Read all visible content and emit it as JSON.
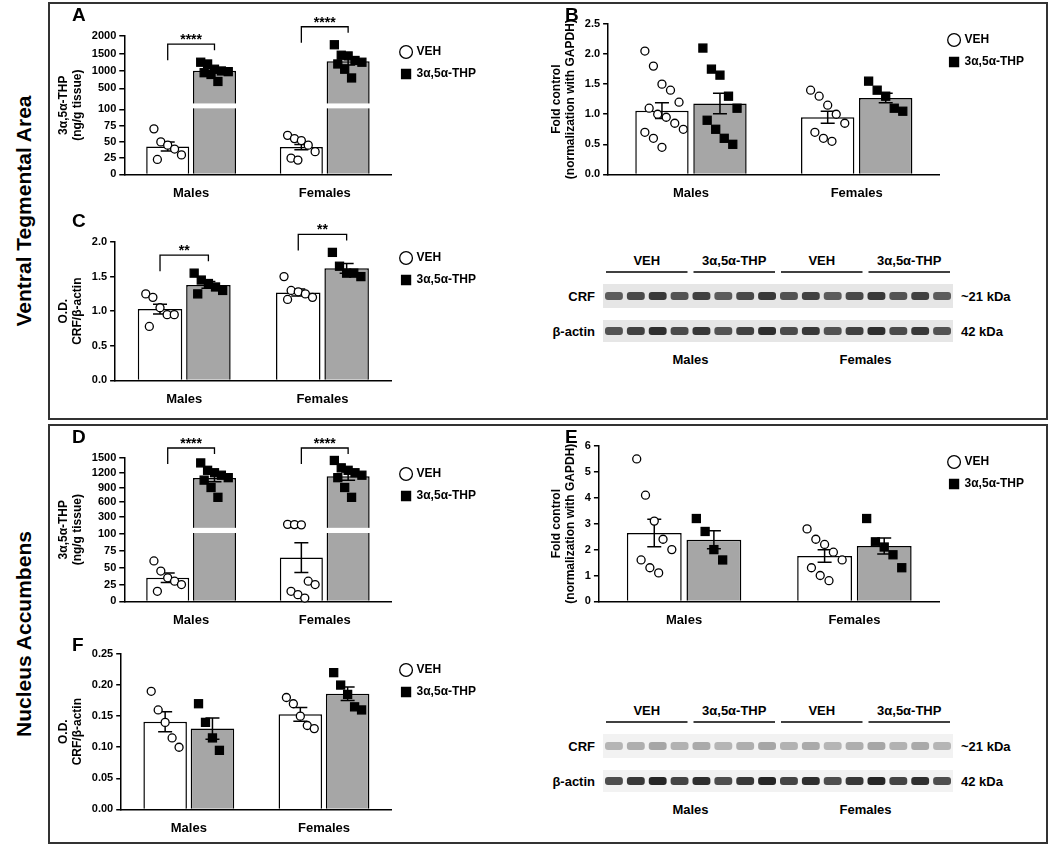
{
  "sections": [
    {
      "label": "Ventral Tegmental Area"
    },
    {
      "label": "Nucleus Accumbens"
    }
  ],
  "chart_data": [
    {
      "panel": "A",
      "type": "bar",
      "y_label": [
        "3α,5α-THP",
        "(ng/g tissue)"
      ],
      "categories": [
        "Males",
        "Females"
      ],
      "y_segments": [
        {
          "ylim": [
            0,
            100
          ],
          "yticks": [
            0,
            25,
            50,
            75,
            100
          ]
        },
        {
          "ylim": [
            100,
            2000
          ],
          "yticks": [
            500,
            1000,
            1500,
            2000
          ]
        }
      ],
      "grid": false,
      "legend": "right",
      "series": [
        {
          "name": "VEH",
          "color": "#ffffff",
          "marker": "circle-open",
          "values": [
            43,
            42
          ],
          "errors": [
            7,
            4
          ],
          "points": [
            [
              70,
              50,
              45,
              39,
              30,
              23
            ],
            [
              60,
              55,
              52,
              45,
              35,
              25,
              22
            ]
          ]
        },
        {
          "name": "3α,5α-THP",
          "color": "#a6a6a6",
          "marker": "square",
          "values": [
            1004,
            1280
          ],
          "errors": [
            57,
            110
          ],
          "points": [
            [
              1250,
              1200,
              1050,
              1000,
              980,
              950,
              900,
              700
            ],
            [
              1750,
              1450,
              1430,
              1300,
              1250,
              1200,
              1050,
              800
            ]
          ]
        }
      ],
      "significance": [
        {
          "category": "Males",
          "label": "****"
        },
        {
          "category": "Females",
          "label": "****"
        }
      ]
    },
    {
      "panel": "B",
      "type": "bar",
      "y_label": [
        "Fold control",
        "(normalization with GAPDH)"
      ],
      "categories": [
        "Males",
        "Females"
      ],
      "ylim": [
        0,
        2.5
      ],
      "yticks": [
        {
          "value": 0,
          "label": "0.0"
        },
        0.5,
        {
          "value": 1,
          "label": "1.0"
        },
        1.5,
        {
          "value": 2,
          "label": "2.0"
        },
        2.5
      ],
      "grid": false,
      "legend": "right",
      "series": [
        {
          "name": "VEH",
          "color": "#ffffff",
          "marker": "circle-open",
          "values": [
            1.06,
            0.95
          ],
          "errors": [
            0.13,
            0.1
          ],
          "points": [
            [
              2.05,
              1.8,
              1.5,
              1.4,
              1.2,
              1.1,
              1.0,
              0.95,
              0.85,
              0.75,
              0.7,
              0.6,
              0.45
            ],
            [
              1.4,
              1.3,
              1.15,
              1.0,
              0.85,
              0.7,
              0.6,
              0.55
            ]
          ]
        },
        {
          "name": "3α,5α-THP",
          "color": "#a6a6a6",
          "marker": "square",
          "values": [
            1.18,
            1.27
          ],
          "errors": [
            0.17,
            0.08
          ],
          "points": [
            [
              2.1,
              1.75,
              1.65,
              1.3,
              1.1,
              0.9,
              0.75,
              0.6,
              0.5
            ],
            [
              1.55,
              1.4,
              1.3,
              1.1,
              1.05
            ]
          ]
        }
      ],
      "significance": []
    },
    {
      "panel": "C",
      "type": "bar",
      "y_label": [
        "O.D.",
        "CRF/β-actin"
      ],
      "categories": [
        "Males",
        "Females"
      ],
      "ylim": [
        0,
        2
      ],
      "yticks": [
        {
          "value": 0,
          "label": "0.0"
        },
        0.5,
        {
          "value": 1,
          "label": "1.0"
        },
        1.5,
        {
          "value": 2,
          "label": "2.0"
        }
      ],
      "grid": false,
      "legend": "right",
      "series": [
        {
          "name": "VEH",
          "color": "#ffffff",
          "marker": "circle-open",
          "values": [
            1.03,
            1.27
          ],
          "errors": [
            0.07,
            0.05
          ],
          "points": [
            [
              1.25,
              1.2,
              1.05,
              0.95,
              0.95,
              0.78
            ],
            [
              1.5,
              1.3,
              1.28,
              1.25,
              1.2,
              1.17
            ]
          ]
        },
        {
          "name": "3α,5α-THP",
          "color": "#a6a6a6",
          "marker": "square",
          "values": [
            1.38,
            1.62
          ],
          "errors": [
            0.05,
            0.07
          ],
          "points": [
            [
              1.55,
              1.45,
              1.4,
              1.35,
              1.3,
              1.25
            ],
            [
              1.85,
              1.65,
              1.55,
              1.55,
              1.5
            ]
          ]
        }
      ],
      "significance": [
        {
          "category": "Males",
          "label": "**"
        },
        {
          "category": "Females",
          "label": "**"
        }
      ]
    },
    {
      "panel": "D",
      "type": "bar",
      "y_label": [
        "3α,5α-THP",
        "(ng/g tissue)"
      ],
      "categories": [
        "Males",
        "Females"
      ],
      "y_segments": [
        {
          "ylim": [
            0,
            100
          ],
          "yticks": [
            0,
            25,
            50,
            75,
            100
          ]
        },
        {
          "ylim": [
            100,
            1500
          ],
          "yticks": [
            300,
            600,
            900,
            1200,
            1500
          ]
        }
      ],
      "grid": false,
      "legend": "right",
      "series": [
        {
          "name": "VEH",
          "color": "#ffffff",
          "marker": "circle-open",
          "values": [
            35,
            65
          ],
          "errors": [
            7,
            22
          ],
          "points": [
            [
              60,
              45,
              35,
              30,
              25,
              15
            ],
            [
              150,
              145,
              140,
              30,
              25,
              15,
              10,
              5
            ]
          ]
        },
        {
          "name": "3α,5α-THP",
          "color": "#a6a6a6",
          "marker": "square",
          "values": [
            1094,
            1131
          ],
          "errors": [
            75,
            85
          ],
          "points": [
            [
              1400,
              1250,
              1200,
              1150,
              1100,
              1050,
              900,
              700
            ],
            [
              1450,
              1300,
              1250,
              1200,
              1150,
              1100,
              900,
              700
            ]
          ]
        }
      ],
      "significance": [
        {
          "category": "Males",
          "label": "****"
        },
        {
          "category": "Females",
          "label": "****"
        }
      ]
    },
    {
      "panel": "E",
      "type": "bar",
      "y_label": [
        "Fold control",
        "(normalization with GAPDH)"
      ],
      "categories": [
        "Males",
        "Females"
      ],
      "ylim": [
        0,
        6
      ],
      "yticks": [
        0,
        1,
        2,
        3,
        4,
        5,
        6
      ],
      "grid": false,
      "legend": "right",
      "series": [
        {
          "name": "VEH",
          "color": "#ffffff",
          "marker": "circle-open",
          "values": [
            2.64,
            1.75
          ],
          "errors": [
            0.53,
            0.24
          ],
          "points": [
            [
              5.5,
              4.1,
              3.1,
              2.4,
              2.0,
              1.6,
              1.3,
              1.1
            ],
            [
              2.8,
              2.4,
              2.2,
              1.9,
              1.6,
              1.3,
              1.0,
              0.8
            ]
          ]
        },
        {
          "name": "3α,5α-THP",
          "color": "#a6a6a6",
          "marker": "square",
          "values": [
            2.38,
            2.14
          ],
          "errors": [
            0.35,
            0.31
          ],
          "points": [
            [
              3.2,
              2.7,
              2.0,
              1.6
            ],
            [
              3.2,
              2.3,
              2.1,
              1.8,
              1.3
            ]
          ]
        }
      ],
      "significance": []
    },
    {
      "panel": "F",
      "type": "bar",
      "y_label": [
        "O.D.",
        "CRF/β-actin"
      ],
      "categories": [
        "Males",
        "Females"
      ],
      "ylim": [
        0,
        0.25
      ],
      "yticks": [
        {
          "value": 0,
          "label": "0.00"
        },
        0.05,
        {
          "value": 0.1,
          "label": "0.10"
        },
        0.15,
        {
          "value": 0.2,
          "label": "0.20"
        },
        0.25
      ],
      "grid": false,
      "legend": "right",
      "series": [
        {
          "name": "VEH",
          "color": "#ffffff",
          "marker": "circle-open",
          "values": [
            0.141,
            0.153
          ],
          "errors": [
            0.016,
            0.011
          ],
          "points": [
            [
              0.19,
              0.16,
              0.14,
              0.115,
              0.1
            ],
            [
              0.18,
              0.17,
              0.15,
              0.135,
              0.13
            ]
          ]
        },
        {
          "name": "3α,5α-THP",
          "color": "#a6a6a6",
          "marker": "square",
          "values": [
            0.13,
            0.186
          ],
          "errors": [
            0.017,
            0.011
          ],
          "points": [
            [
              0.17,
              0.14,
              0.115,
              0.095
            ],
            [
              0.22,
              0.2,
              0.185,
              0.165,
              0.16
            ]
          ]
        }
      ],
      "significance": []
    }
  ],
  "blots": [
    {
      "groups": [
        "VEH",
        "3α,5α-THP",
        "VEH",
        "3α,5α-THP"
      ],
      "rows": [
        {
          "label": "CRF",
          "size": "~21 kDa"
        },
        {
          "label": "β-actin",
          "size": "42 kDa"
        }
      ],
      "sexes": [
        "Males",
        "Females"
      ]
    },
    {
      "groups": [
        "VEH",
        "3α,5α-THP",
        "VEH",
        "3α,5α-THP"
      ],
      "rows": [
        {
          "label": "CRF",
          "size": "~21 kDa"
        },
        {
          "label": "β-actin",
          "size": "42 kDa"
        }
      ],
      "sexes": [
        "Males",
        "Females"
      ]
    }
  ]
}
